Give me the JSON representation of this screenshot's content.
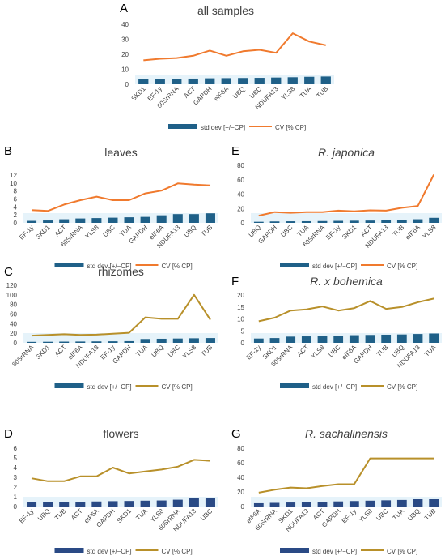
{
  "chart_data": [
    {
      "id": "A",
      "type": "bar+line",
      "panel_letter": "A",
      "title": "all samples",
      "title_italic": false,
      "categories": [
        "SKD1",
        "EF-1y",
        "60SrRNA",
        "ACT",
        "GAPDH",
        "eIF6A",
        "UBQ",
        "UBC",
        "NDUFA13",
        "YLS8",
        "TUA",
        "TUB"
      ],
      "ylim": [
        0,
        40
      ],
      "yticks": [
        0,
        10,
        20,
        30,
        40
      ],
      "series": [
        {
          "name": "std dev [+/−CP]",
          "kind": "bar",
          "values": [
            3.5,
            3.6,
            3.7,
            3.8,
            4.0,
            4.1,
            4.2,
            4.3,
            4.5,
            4.7,
            5.0,
            5.2
          ]
        },
        {
          "name": "CV [% CP]",
          "kind": "line",
          "values": [
            16,
            17,
            17.5,
            19,
            22.5,
            19,
            22,
            23,
            21,
            34,
            28.5,
            26
          ]
        }
      ],
      "bar_color": "#1F6088",
      "line_color": "#F07A2E",
      "band": "#E6F3FA"
    },
    {
      "id": "B",
      "type": "bar+line",
      "panel_letter": "B",
      "title": "leaves",
      "title_italic": false,
      "categories": [
        "EF-1y",
        "SKD1",
        "ACT",
        "60SrRNA",
        "YLS8",
        "UBC",
        "TUA",
        "GAPDH",
        "eIF6A",
        "NDUFA13",
        "UBQ",
        "TUB"
      ],
      "ylim": [
        0,
        12
      ],
      "yticks": [
        0,
        2,
        4,
        6,
        8,
        10,
        12
      ],
      "series": [
        {
          "name": "std dev [+/−CP]",
          "kind": "bar",
          "values": [
            0.5,
            0.6,
            0.9,
            1.1,
            1.2,
            1.3,
            1.4,
            1.5,
            1.9,
            2.2,
            2.2,
            2.4
          ]
        },
        {
          "name": "CV [% CP]",
          "kind": "line",
          "values": [
            3.2,
            3.0,
            4.6,
            5.7,
            6.6,
            5.7,
            5.7,
            7.4,
            8.1,
            9.9,
            9.6,
            9.4
          ]
        }
      ],
      "bar_color": "#1F6088",
      "line_color": "#F07A2E",
      "band": "#E6F3FA"
    },
    {
      "id": "E",
      "type": "bar+line",
      "panel_letter": "E",
      "title": "R. japonica",
      "title_italic": true,
      "categories": [
        "UBQ",
        "GAPDH",
        "UBC",
        "TUA",
        "60SrRNA",
        "EF-1y",
        "SKD1",
        "ACT",
        "NDUFA13",
        "TUB",
        "eIF6A",
        "YLS8"
      ],
      "ylim": [
        0,
        80
      ],
      "yticks": [
        0,
        20,
        40,
        60,
        80
      ],
      "series": [
        {
          "name": "std dev [+/−CP]",
          "kind": "bar",
          "values": [
            1.5,
            2.0,
            2.2,
            2.3,
            2.5,
            2.8,
            3.0,
            3.2,
            3.5,
            4.0,
            5.0,
            7.0
          ]
        },
        {
          "name": "CV [% CP]",
          "kind": "line",
          "values": [
            10,
            15,
            14,
            15,
            15,
            17,
            16,
            17.5,
            17,
            21,
            23.5,
            67
          ]
        }
      ],
      "bar_color": "#1F6088",
      "line_color": "#F07A2E",
      "band": "#E6F3FA"
    },
    {
      "id": "C",
      "type": "bar+line",
      "panel_letter": "C",
      "title": "rhizomes",
      "title_italic": false,
      "categories": [
        "60SrRNA",
        "SKD1",
        "ACT",
        "eIF6A",
        "NDUFA13",
        "EF-1y",
        "GAPDH",
        "TUA",
        "UBQ",
        "UBC",
        "YLS8",
        "TUB"
      ],
      "ylim": [
        0,
        120
      ],
      "yticks": [
        0,
        20,
        40,
        60,
        80,
        100,
        120
      ],
      "series": [
        {
          "name": "std dev [+/−CP]",
          "kind": "bar",
          "values": [
            2,
            2.2,
            2.5,
            2.7,
            3,
            3.2,
            3.5,
            8,
            8.5,
            9,
            9.5,
            10
          ]
        },
        {
          "name": "CV [% CP]",
          "kind": "line",
          "values": [
            15,
            16.5,
            18,
            16.5,
            17,
            19,
            21,
            53,
            50,
            50,
            100,
            48
          ]
        }
      ],
      "bar_color": "#1F6088",
      "line_color": "#B8902A",
      "band": "#E6F3FA"
    },
    {
      "id": "F",
      "type": "bar+line",
      "panel_letter": "F",
      "title": "R. x bohemica",
      "title_italic": true,
      "categories": [
        "EF-1y",
        "SKD1",
        "60SrRNA",
        "ACT",
        "YLS8",
        "UBC",
        "eIF6A",
        "GAPDH",
        "TUB",
        "UBQ",
        "NDUFA13",
        "TUA"
      ],
      "ylim": [
        0,
        20
      ],
      "yticks": [
        0,
        5,
        10,
        15,
        20
      ],
      "series": [
        {
          "name": "std dev [+/−CP]",
          "kind": "bar",
          "values": [
            1.8,
            2.0,
            2.6,
            2.7,
            2.8,
            3.0,
            3.2,
            3.3,
            3.4,
            3.5,
            3.7,
            3.9
          ]
        },
        {
          "name": "CV [% CP]",
          "kind": "line",
          "values": [
            9,
            10.5,
            13.5,
            14,
            15.2,
            13.5,
            14.5,
            17.5,
            14.2,
            15,
            17,
            18.5
          ]
        }
      ],
      "bar_color": "#1F6088",
      "line_color": "#B8902A",
      "band": "#E6F3FA"
    },
    {
      "id": "D",
      "type": "bar+line",
      "panel_letter": "D",
      "title": "flowers",
      "title_italic": false,
      "categories": [
        "EF-1y",
        "UBQ",
        "TUB",
        "ACT",
        "eIF6A",
        "GAPDH",
        "SKD1",
        "TUA",
        "YLS8",
        "60SrRNA",
        "NDUFA13",
        "UBC"
      ],
      "ylim": [
        0,
        6
      ],
      "yticks": [
        0,
        1,
        2,
        3,
        4,
        5,
        6
      ],
      "series": [
        {
          "name": "std dev [+/−CP]",
          "kind": "bar",
          "values": [
            0.45,
            0.45,
            0.48,
            0.5,
            0.52,
            0.55,
            0.57,
            0.6,
            0.62,
            0.7,
            0.85,
            0.85
          ]
        },
        {
          "name": "CV [% CP]",
          "kind": "line",
          "values": [
            2.9,
            2.6,
            2.6,
            3.1,
            3.1,
            4.0,
            3.4,
            3.6,
            3.8,
            4.1,
            4.8,
            4.7
          ]
        }
      ],
      "bar_color": "#2A4A85",
      "line_color": "#B8902A",
      "band": "#E6F3FA"
    },
    {
      "id": "G",
      "type": "bar+line",
      "panel_letter": "G",
      "title": "R. sachalinensis",
      "title_italic": true,
      "categories": [
        "eIF6A",
        "60SrRNA",
        "SKD1",
        "NDUFA13",
        "ACT",
        "GAPDH",
        "EF-1y",
        "YLS8",
        "UBC",
        "TUA",
        "UBQ",
        "TUB"
      ],
      "ylim": [
        0,
        80
      ],
      "yticks": [
        0,
        20,
        40,
        60,
        80
      ],
      "series": [
        {
          "name": "std dev [+/−CP]",
          "kind": "bar",
          "values": [
            4.5,
            5,
            5.5,
            6,
            6.5,
            7,
            7.5,
            8,
            8.5,
            9,
            10,
            10
          ]
        },
        {
          "name": "CV [% CP]",
          "kind": "line",
          "values": [
            19,
            23,
            26,
            25,
            28,
            30.5,
            30.5,
            66,
            66,
            66,
            66,
            66
          ]
        }
      ],
      "bar_color": "#2A4A85",
      "line_color": "#B8902A",
      "band": "#E6F3FA"
    }
  ]
}
